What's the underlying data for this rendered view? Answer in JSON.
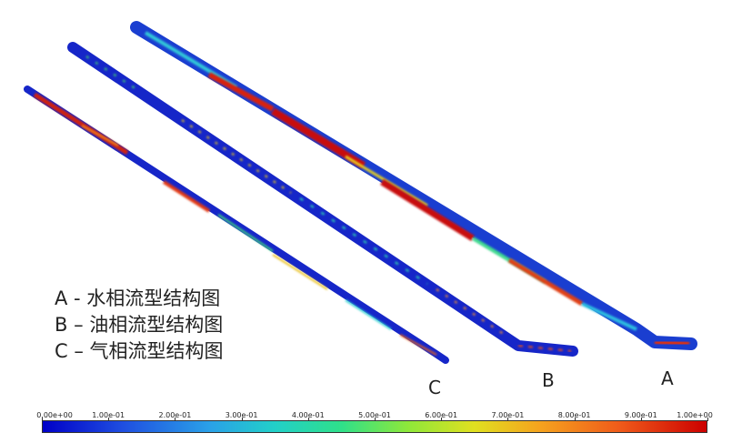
{
  "legend": {
    "line_a": "A - 水相流型结构图",
    "line_b": "B – 油相流型结构图",
    "line_c": "C – 气相流型结构图"
  },
  "pipes": {
    "a_label": "A",
    "b_label": "B",
    "c_label": "C"
  },
  "colorbar": {
    "ticks": [
      "0.00e+00",
      "1.00e-01",
      "2.00e-01",
      "3.00e-01",
      "4.00e-01",
      "5.00e-01",
      "6.00e-01",
      "7.00e-01",
      "8.00e-01",
      "9.00e-01",
      "1.00e+00"
    ],
    "colors": [
      "#0000c8",
      "#2aa0e8",
      "#2fe08a",
      "#e0e020",
      "#ef5a1a",
      "#cc0000"
    ]
  }
}
